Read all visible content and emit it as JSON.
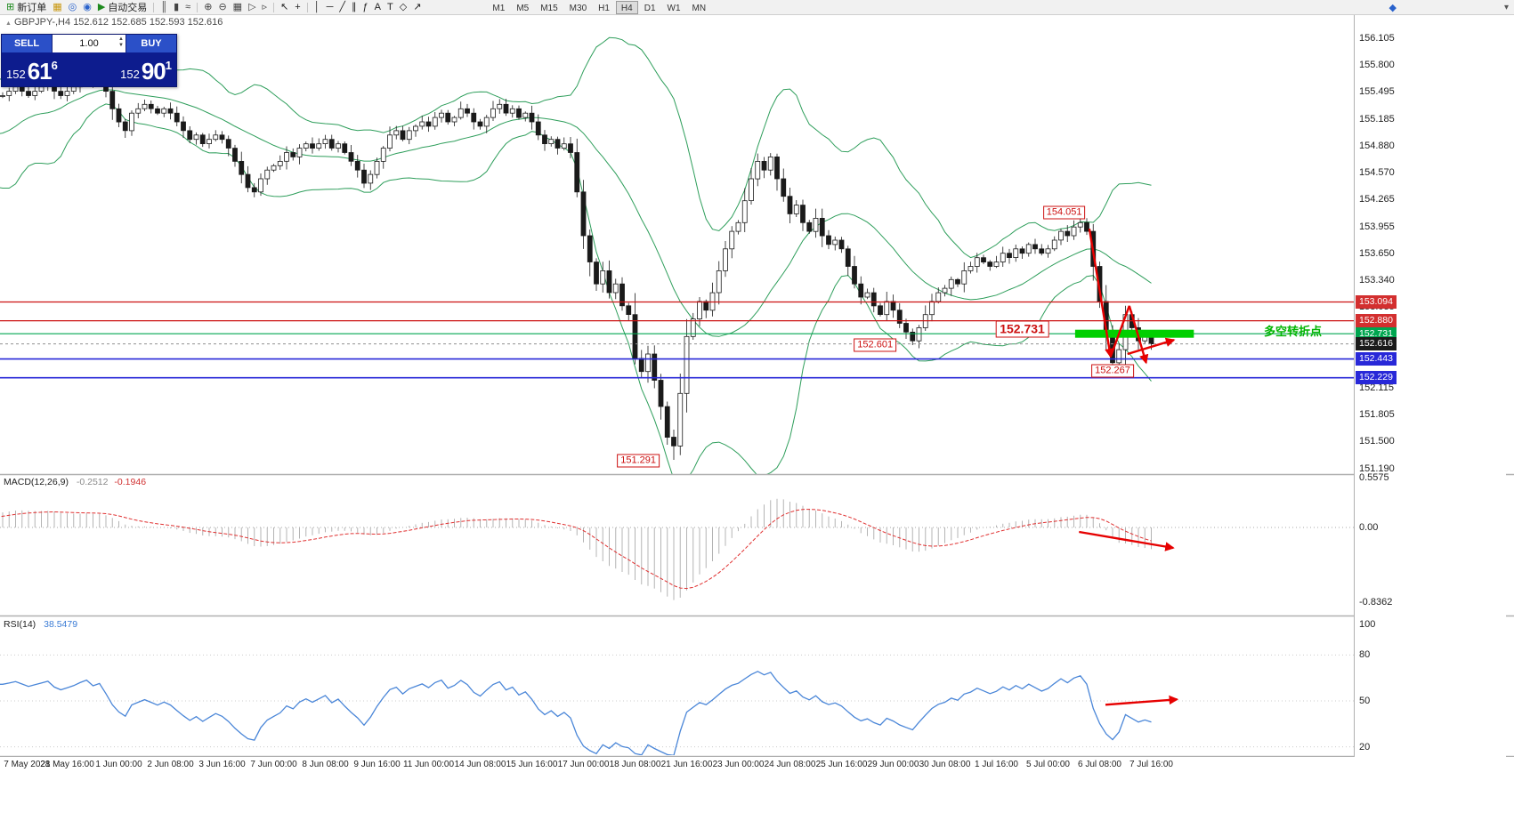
{
  "window": {
    "title": "MetaTrader - GBPJPY H4"
  },
  "icons": {
    "symbol_marker": "▲",
    "spin_up": "▲",
    "spin_down": "▼",
    "community": "◆",
    "overflow": "▾"
  },
  "toolbar": {
    "items": [
      {
        "name": "new-order-button",
        "glyph": "⊞",
        "color": "#1e8a1e",
        "label": "新订单"
      },
      {
        "name": "chart-window-icon",
        "glyph": "▦",
        "color": "#c8960c"
      },
      {
        "name": "alerts-icon",
        "glyph": "◎",
        "color": "#2962cc"
      },
      {
        "name": "news-icon",
        "glyph": "◉",
        "color": "#2962cc"
      },
      {
        "name": "autotrade-button",
        "glyph": "▶",
        "color": "#1e8a1e",
        "label": "自动交易"
      },
      {
        "sep": true
      },
      {
        "name": "bar-chart-icon",
        "glyph": "║",
        "color": "#444444"
      },
      {
        "name": "candlestick-icon",
        "glyph": "▮",
        "color": "#444444"
      },
      {
        "name": "line-chart-icon",
        "glyph": "≈",
        "color": "#444444"
      },
      {
        "sep": true
      },
      {
        "name": "zoom-in-icon",
        "glyph": "⊕",
        "color": "#444444"
      },
      {
        "name": "zoom-out-icon",
        "glyph": "⊖",
        "color": "#444444"
      },
      {
        "name": "tile-windows-icon",
        "glyph": "▦",
        "color": "#444444"
      },
      {
        "name": "auto-scroll-icon",
        "glyph": "▷",
        "color": "#444444"
      },
      {
        "name": "chart-shift-icon",
        "glyph": "▹",
        "color": "#444444"
      },
      {
        "sep": true
      },
      {
        "name": "cursor-icon",
        "glyph": "↖",
        "color": "#222222"
      },
      {
        "name": "crosshair-icon",
        "glyph": "+",
        "color": "#222222"
      },
      {
        "sep": true
      },
      {
        "name": "vertical-line-icon",
        "glyph": "│",
        "color": "#222222"
      },
      {
        "name": "horizontal-line-icon",
        "glyph": "─",
        "color": "#222222"
      },
      {
        "name": "trendline-icon",
        "glyph": "╱",
        "color": "#222222"
      },
      {
        "name": "channel-icon",
        "glyph": "∥",
        "color": "#222222"
      },
      {
        "name": "fibonacci-icon",
        "glyph": "ƒ",
        "color": "#222222"
      },
      {
        "name": "text-icon",
        "glyph": "A",
        "color": "#222222"
      },
      {
        "name": "label-icon",
        "glyph": "T",
        "color": "#222222"
      },
      {
        "name": "shapes-icon",
        "glyph": "◇",
        "color": "#222222"
      },
      {
        "name": "arrow-tool-icon",
        "glyph": "↗",
        "color": "#222222"
      }
    ],
    "timeframes": [
      "M1",
      "M5",
      "M15",
      "M30",
      "H1",
      "H4",
      "D1",
      "W1",
      "MN"
    ],
    "active_timeframe": "H4"
  },
  "chart_header": {
    "symbol": "GBPJPY-,H4",
    "ohlc": "152.612 152.685 152.593 152.616"
  },
  "trade_panel": {
    "sell_label": "SELL",
    "buy_label": "BUY",
    "volume": "1.00",
    "sell_price": {
      "prefix": "152",
      "big": "61",
      "sup": "6"
    },
    "buy_price": {
      "prefix": "152",
      "big": "90",
      "sup": "1"
    }
  },
  "indicators_header": {
    "macd_name": "MACD(12,26,9)",
    "macd_main": "-0.2512",
    "macd_signal": "-0.1946",
    "rsi_name": "RSI(14)",
    "rsi_value": "38.5479"
  },
  "price_scale": {
    "labels": [
      "156.105",
      "155.800",
      "155.495",
      "155.185",
      "154.880",
      "154.570",
      "154.265",
      "153.955",
      "153.650",
      "153.340",
      "153.035",
      "152.725",
      "152.420",
      "152.115",
      "151.805",
      "151.500",
      "151.190"
    ],
    "tags": [
      {
        "text": "153.094",
        "price": 153.094,
        "color": "#d32f2f"
      },
      {
        "text": "152.880",
        "price": 152.88,
        "color": "#d32f2f"
      },
      {
        "text": "152.731",
        "price": 152.731,
        "color": "#00a650"
      },
      {
        "text": "152.616",
        "price": 152.616,
        "color": "#1a1a1a"
      },
      {
        "text": "152.443",
        "price": 152.443,
        "color": "#2828d8"
      },
      {
        "text": "152.229",
        "price": 152.229,
        "color": "#2828d8"
      }
    ],
    "macd_labels": [
      {
        "text": "0.5575",
        "value": 0.5575
      },
      {
        "text": "0.00",
        "value": 0
      },
      {
        "text": "-0.8362",
        "value": -0.8362
      }
    ],
    "rsi_labels": [
      {
        "text": "100",
        "value": 100
      },
      {
        "text": "80",
        "value": 80
      },
      {
        "text": "50",
        "value": 50
      },
      {
        "text": "20",
        "value": 20
      }
    ]
  },
  "hlines": [
    {
      "price": 153.094,
      "color": "#cc1111",
      "width": 1.2,
      "dash": ""
    },
    {
      "price": 152.88,
      "color": "#cc1111",
      "width": 1.2,
      "dash": ""
    },
    {
      "price": 152.731,
      "color": "#00a650",
      "width": 1.2,
      "dash": ""
    },
    {
      "price": 152.616,
      "color": "#909090",
      "width": 1,
      "dash": "3,3"
    },
    {
      "price": 152.443,
      "color": "#2828d8",
      "width": 1.6,
      "dash": ""
    },
    {
      "price": 152.229,
      "color": "#2828d8",
      "width": 1.6,
      "dash": ""
    }
  ],
  "annotations": {
    "turning_point_text": "多空转折点",
    "callouts": [
      {
        "text": "154.051",
        "bar": 194.5,
        "price": 154.11,
        "size": "normal"
      },
      {
        "text": "152.731",
        "bar": 188,
        "price": 152.78,
        "size": "large"
      },
      {
        "text": "152.601",
        "bar": 165.2,
        "price": 152.6,
        "size": "normal"
      },
      {
        "text": "152.267",
        "bar": 202,
        "price": 152.31,
        "size": "normal"
      },
      {
        "text": "151.291",
        "bar": 128.5,
        "price": 151.28,
        "size": "normal"
      }
    ],
    "band": {
      "bar_from": 196.2,
      "bar_to": 214.6,
      "price": 152.731,
      "color": "#00cf00"
    },
    "arrows_price": [
      {
        "b1": 198.4,
        "p1": 153.93,
        "b2": 201.7,
        "p2": 152.47,
        "head": true
      },
      {
        "b1": 201.7,
        "p1": 152.47,
        "b2": 204.6,
        "p2": 153.05,
        "head": false
      },
      {
        "b1": 204.6,
        "p1": 153.05,
        "b2": 207.2,
        "p2": 152.4,
        "head": true
      },
      {
        "b1": 204.3,
        "p1": 152.5,
        "b2": 211.5,
        "p2": 152.66,
        "head": true
      }
    ],
    "macd_arrow": {
      "b1": 196.8,
      "v1": -0.05,
      "b2": 211.4,
      "v2": -0.23,
      "head": true
    },
    "rsi_arrow": {
      "b1": 200.9,
      "v1": 47.5,
      "b2": 212.0,
      "v2": 51.0,
      "head": true
    },
    "arrow_color": "#e60000"
  },
  "chart_data": {
    "type": "candlestick",
    "symbol": "GBPJPY-",
    "timeframe": "H4",
    "ohlc_display": {
      "open": "152.612",
      "high": "152.685",
      "low": "152.593",
      "close": "152.616"
    },
    "ylim": [
      151.19,
      156.105
    ],
    "closes": [
      154.5,
      154.8,
      155.1,
      154.9,
      154.6,
      154.4,
      154.7,
      155.0,
      155.3,
      155.4,
      155.2,
      154.9,
      154.6,
      154.4,
      154.6,
      154.9,
      155.2,
      155.4,
      155.1,
      154.8,
      154.6,
      154.8,
      155.0,
      154.9,
      155.1,
      155.2,
      155.3,
      155.35,
      155.4,
      155.45,
      155.45,
      155.5,
      155.55,
      155.5,
      155.45,
      155.5,
      155.55,
      155.6,
      155.5,
      155.45,
      155.5,
      155.55,
      155.62,
      155.68,
      155.6,
      155.65,
      155.5,
      155.3,
      155.15,
      155.05,
      155.25,
      155.3,
      155.35,
      155.3,
      155.25,
      155.3,
      155.25,
      155.15,
      155.05,
      154.95,
      155.0,
      154.9,
      154.95,
      155.0,
      154.95,
      154.85,
      154.7,
      154.55,
      154.4,
      154.35,
      154.5,
      154.6,
      154.65,
      154.7,
      154.8,
      154.75,
      154.85,
      154.9,
      154.85,
      154.9,
      154.95,
      154.85,
      154.9,
      154.8,
      154.7,
      154.6,
      154.45,
      154.55,
      154.7,
      154.85,
      155.0,
      155.05,
      154.95,
      155.05,
      155.1,
      155.15,
      155.1,
      155.2,
      155.25,
      155.15,
      155.2,
      155.3,
      155.25,
      155.15,
      155.1,
      155.2,
      155.3,
      155.35,
      155.25,
      155.3,
      155.2,
      155.25,
      155.15,
      155.0,
      154.9,
      154.95,
      154.85,
      154.9,
      154.8,
      154.35,
      153.85,
      153.55,
      153.3,
      153.45,
      153.2,
      153.3,
      153.05,
      152.95,
      152.45,
      152.3,
      152.5,
      152.2,
      151.9,
      151.55,
      151.45,
      152.05,
      152.7,
      152.9,
      153.1,
      153.0,
      153.2,
      153.45,
      153.7,
      153.9,
      154.0,
      154.25,
      154.5,
      154.7,
      154.6,
      154.75,
      154.5,
      154.3,
      154.1,
      154.2,
      154.0,
      153.9,
      154.05,
      153.85,
      153.75,
      153.8,
      153.7,
      153.5,
      153.3,
      153.15,
      153.2,
      153.05,
      152.95,
      153.1,
      153.0,
      152.85,
      152.75,
      152.65,
      152.8,
      152.95,
      153.1,
      153.2,
      153.25,
      153.35,
      153.3,
      153.45,
      153.5,
      153.6,
      153.55,
      153.5,
      153.55,
      153.65,
      153.6,
      153.7,
      153.65,
      153.75,
      153.7,
      153.65,
      153.7,
      153.8,
      153.9,
      153.85,
      153.95,
      154.0,
      153.9,
      153.5,
      153.1,
      152.7,
      152.4,
      152.55,
      152.95,
      152.8,
      152.65,
      152.7,
      152.616
    ],
    "ohlc_overrides": {
      "134": {
        "low": 151.291
      },
      "171": {
        "low": 152.601
      },
      "197": {
        "high": 154.051
      },
      "202": {
        "low": 152.267
      }
    },
    "indicators": {
      "bollinger_bands": {
        "period": 20,
        "deviation": 2,
        "color": "#2e9e5b"
      },
      "macd": {
        "fast": 12,
        "slow": 26,
        "signal": 9,
        "current_main": -0.2512,
        "current_signal": -0.1946,
        "axis": [
          0.5575,
          0.0,
          -0.8362
        ],
        "histogram_color": "#b4b4b4",
        "signal_color": "#e03030"
      },
      "rsi": {
        "period": 14,
        "current": 38.5479,
        "axis": [
          100,
          80,
          50,
          20
        ],
        "color": "#4a86d8"
      }
    },
    "time_labels": [
      {
        "text": "7 May 2021",
        "bar": 31
      },
      {
        "text": "28 May 16:00",
        "bar": 40
      },
      {
        "text": "1 Jun 00:00",
        "bar": 48
      },
      {
        "text": "2 Jun 08:00",
        "bar": 56
      },
      {
        "text": "3 Jun 16:00",
        "bar": 64
      },
      {
        "text": "7 Jun 00:00",
        "bar": 72
      },
      {
        "text": "8 Jun 08:00",
        "bar": 80
      },
      {
        "text": "9 Jun 16:00",
        "bar": 88
      },
      {
        "text": "11 Jun 00:00",
        "bar": 96
      },
      {
        "text": "14 Jun 08:00",
        "bar": 104
      },
      {
        "text": "15 Jun 16:00",
        "bar": 112
      },
      {
        "text": "17 Jun 00:00",
        "bar": 120
      },
      {
        "text": "18 Jun 08:00",
        "bar": 128
      },
      {
        "text": "21 Jun 16:00",
        "bar": 136
      },
      {
        "text": "23 Jun 00:00",
        "bar": 144
      },
      {
        "text": "24 Jun 08:00",
        "bar": 152
      },
      {
        "text": "25 Jun 16:00",
        "bar": 160
      },
      {
        "text": "29 Jun 00:00",
        "bar": 168
      },
      {
        "text": "30 Jun 08:00",
        "bar": 176
      },
      {
        "text": "1 Jul 16:00",
        "bar": 184
      },
      {
        "text": "5 Jul 00:00",
        "bar": 192
      },
      {
        "text": "6 Jul 08:00",
        "bar": 200
      },
      {
        "text": "7 Jul 16:00",
        "bar": 208
      }
    ]
  }
}
